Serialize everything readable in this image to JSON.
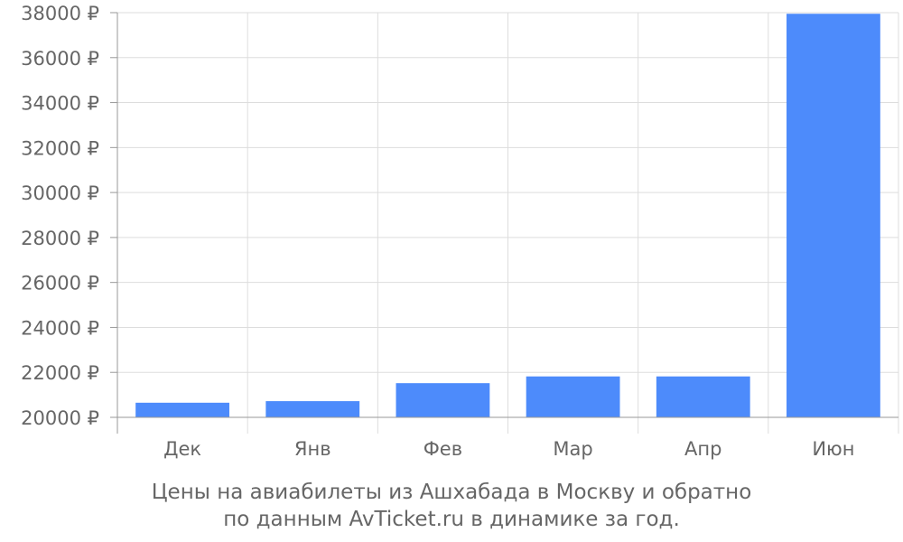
{
  "chart_data": {
    "type": "bar",
    "categories": [
      "Дек",
      "Янв",
      "Фев",
      "Мар",
      "Апр",
      "Июн"
    ],
    "values": [
      20650,
      20720,
      21520,
      21820,
      21820,
      37950
    ],
    "ylim": [
      20000,
      38000
    ],
    "y_ticks": [
      20000,
      22000,
      24000,
      26000,
      28000,
      30000,
      32000,
      34000,
      36000,
      38000
    ],
    "y_tick_suffix": " ₽",
    "grid": true,
    "bar_color": "#4d8bfb",
    "grid_color": "#dddddd",
    "axis_color": "#999999",
    "text_color": "#666666",
    "caption_line1": "Цены на авиабилеты из Ашхабада в Москву и обратно",
    "caption_line2": "по данным AvTicket.ru в динамике за год."
  }
}
